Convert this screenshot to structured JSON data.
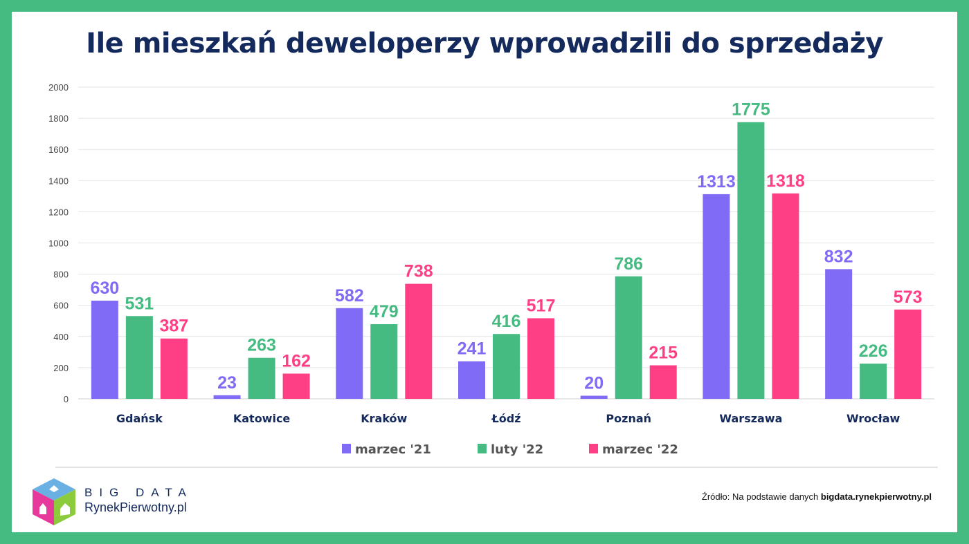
{
  "chart_data": {
    "type": "bar",
    "title": "Ile mieszkań deweloperzy wprowadzili do sprzedaży",
    "categories": [
      "Gdańsk",
      "Katowice",
      "Kraków",
      "Łódź",
      "Poznań",
      "Warszawa",
      "Wrocław"
    ],
    "series": [
      {
        "name": "marzec '21",
        "color": "#7f6bf5",
        "values": [
          630,
          23,
          582,
          241,
          20,
          1313,
          832
        ]
      },
      {
        "name": "luty '22",
        "color": "#45bb82",
        "values": [
          531,
          263,
          479,
          416,
          786,
          1775,
          226
        ]
      },
      {
        "name": "marzec '22",
        "color": "#ff3f85",
        "values": [
          387,
          162,
          738,
          517,
          215,
          1318,
          573
        ]
      }
    ],
    "ylim": [
      0,
      2000
    ],
    "yticks": [
      "0",
      "200",
      "400",
      "600",
      "800",
      "1000",
      "1200",
      "1400",
      "1600",
      "1800",
      "2000"
    ],
    "grid": true,
    "legend": "bottom",
    "xlabel": "",
    "ylabel": ""
  },
  "footer": {
    "source_prefix": "Źródło: Na podstawie danych ",
    "source_site": "bigdata.rynekpierwotny.pl",
    "logo_line1": "BIG DATA",
    "logo_line2": "RynekPierwotny.pl"
  },
  "colors": {
    "frame": "#45bb82",
    "title": "#142a5c"
  }
}
